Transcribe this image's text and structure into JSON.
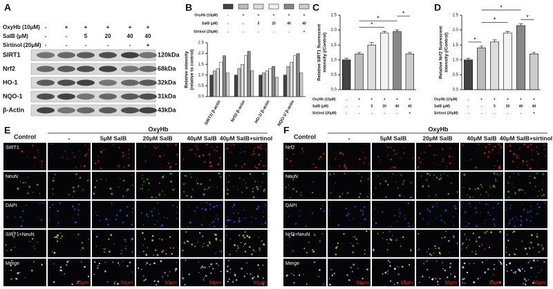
{
  "panel_labels": [
    "A",
    "B",
    "C",
    "D",
    "E",
    "F"
  ],
  "conditions": {
    "rows": [
      {
        "label": "OxyHb (10μM)",
        "values": [
          "-",
          "+",
          "+",
          "+",
          "+",
          "+"
        ]
      },
      {
        "label": "SalB (μM)",
        "values": [
          "-",
          "-",
          "5",
          "20",
          "40",
          "40"
        ]
      },
      {
        "label": "Sirtinol (20μM)",
        "values": [
          "-",
          "-",
          "-",
          "-",
          "-",
          "+"
        ]
      }
    ]
  },
  "blot": {
    "proteins": [
      {
        "name": "SIRT1",
        "size": "120kDa"
      },
      {
        "name": "Nrf2",
        "size": "68kDa"
      },
      {
        "name": "HO-1",
        "size": "32kDa"
      },
      {
        "name": "NQO-1",
        "size": "31kDa"
      },
      {
        "name": "β-Actin",
        "size": "43kDa"
      }
    ]
  },
  "chart_data": [
    {
      "type": "grouped_bar",
      "ylabel": [
        "Relative intensity",
        "(relative to control)"
      ],
      "categories": [
        "SIRT1/ β-actin",
        "Nrf2/ β-actin",
        "HO-1/ β-actin",
        "NQO-1/ β-actin"
      ],
      "series": [
        {
          "color": "#444444",
          "values": [
            1.0,
            1.0,
            1.0,
            1.0
          ]
        },
        {
          "color": "#bbbbbb",
          "values": [
            1.2,
            1.3,
            1.1,
            1.4
          ]
        },
        {
          "color": "#dddddd",
          "values": [
            1.3,
            1.5,
            1.2,
            1.6
          ]
        },
        {
          "color": "#f2f2f2",
          "values": [
            1.6,
            1.9,
            1.3,
            1.9
          ]
        },
        {
          "color": "#888888",
          "values": [
            1.9,
            2.1,
            1.4,
            2.0
          ]
        },
        {
          "color": "#cccccc",
          "values": [
            1.1,
            1.2,
            0.9,
            1.1
          ]
        }
      ],
      "ylim": [
        0,
        2.5
      ],
      "yticks": [
        {
          "value": 0,
          "label": "0.0"
        },
        {
          "value": 0.5,
          "label": "0.5"
        },
        {
          "value": 1,
          "label": "1.0"
        },
        {
          "value": 1.5,
          "label": "1.5"
        },
        {
          "value": 2,
          "label": "2.0"
        },
        {
          "value": 2.5,
          "label": "2.5"
        }
      ]
    },
    {
      "type": "bar",
      "ylabel": [
        "Relative SIRT1 fluorescent",
        "intensity (/Control)"
      ],
      "values": [
        1.0,
        1.2,
        1.5,
        1.9,
        1.95,
        1.2
      ],
      "errors": [
        0.05,
        0.05,
        0.08,
        0.06,
        0.06,
        0.05
      ],
      "colors": [
        "#444444",
        "#bbbbbb",
        "#dddddd",
        "#f2f2f2",
        "#888888",
        "#cccccc"
      ],
      "annotations": [
        {
          "text": "*",
          "from": 1,
          "to": 3
        },
        {
          "text": "*",
          "from": 1,
          "to": 4
        },
        {
          "text": "*",
          "from": 4,
          "to": 5
        }
      ],
      "ylim": [
        0,
        2.5
      ],
      "yticks": [
        {
          "value": 0,
          "label": "0.0"
        },
        {
          "value": 0.5,
          "label": "0.5"
        },
        {
          "value": 1,
          "label": "1.0"
        },
        {
          "value": 1.5,
          "label": "1.5"
        },
        {
          "value": 2,
          "label": "2.0"
        },
        {
          "value": 2.5,
          "label": "2.5"
        }
      ]
    },
    {
      "type": "bar",
      "ylabel": [
        "Relative Nrf2 fluorescent",
        "intensity (/Control)"
      ],
      "values": [
        1.0,
        1.4,
        1.6,
        1.9,
        2.15,
        1.2
      ],
      "errors": [
        0.05,
        0.06,
        0.07,
        0.06,
        0.06,
        0.05
      ],
      "colors": [
        "#444444",
        "#bbbbbb",
        "#dddddd",
        "#f2f2f2",
        "#888888",
        "#cccccc"
      ],
      "annotations": [
        {
          "text": "*",
          "from": 0,
          "to": 1
        },
        {
          "text": "*",
          "from": 1,
          "to": 3
        },
        {
          "text": "*",
          "from": 1,
          "to": 4
        },
        {
          "text": "*",
          "from": 4,
          "to": 5
        }
      ],
      "ylim": [
        0,
        2.5
      ],
      "yticks": [
        {
          "value": 0,
          "label": "0.0"
        },
        {
          "value": 0.5,
          "label": "0.5"
        },
        {
          "value": 1,
          "label": "1.0"
        },
        {
          "value": 1.5,
          "label": "1.5"
        },
        {
          "value": 2,
          "label": "2.0"
        },
        {
          "value": 2.5,
          "label": "2.5"
        }
      ]
    }
  ],
  "micrographs": [
    {
      "control": "Control",
      "group": "OxyHb",
      "columns": [
        "-",
        "5μM SalB",
        "20μM SalB",
        "40μM SalB",
        "40μM SalB+sirtinol"
      ],
      "rows": [
        "SIRT1",
        "NeuN",
        "DAPI",
        "SIRT1+NeuN",
        "Merge"
      ],
      "row_colors": [
        "#e02020",
        "#30c030",
        "#3a48e0",
        "#d0c020",
        "#d8d0ff"
      ],
      "scale_bar": "50μm"
    },
    {
      "control": "Control",
      "group": "OxyHb",
      "columns": [
        "-",
        "5μM SalB",
        "20μM SalB",
        "40μM SalB",
        "40μM SalB+sirtinol"
      ],
      "rows": [
        "Nrf2",
        "NeuN",
        "DAPI",
        "Nrf2+NeuN",
        "Merge"
      ],
      "row_colors": [
        "#e02020",
        "#30c030",
        "#3a48e0",
        "#d0c020",
        "#d8d0ff"
      ],
      "scale_bar": "50μm"
    }
  ]
}
